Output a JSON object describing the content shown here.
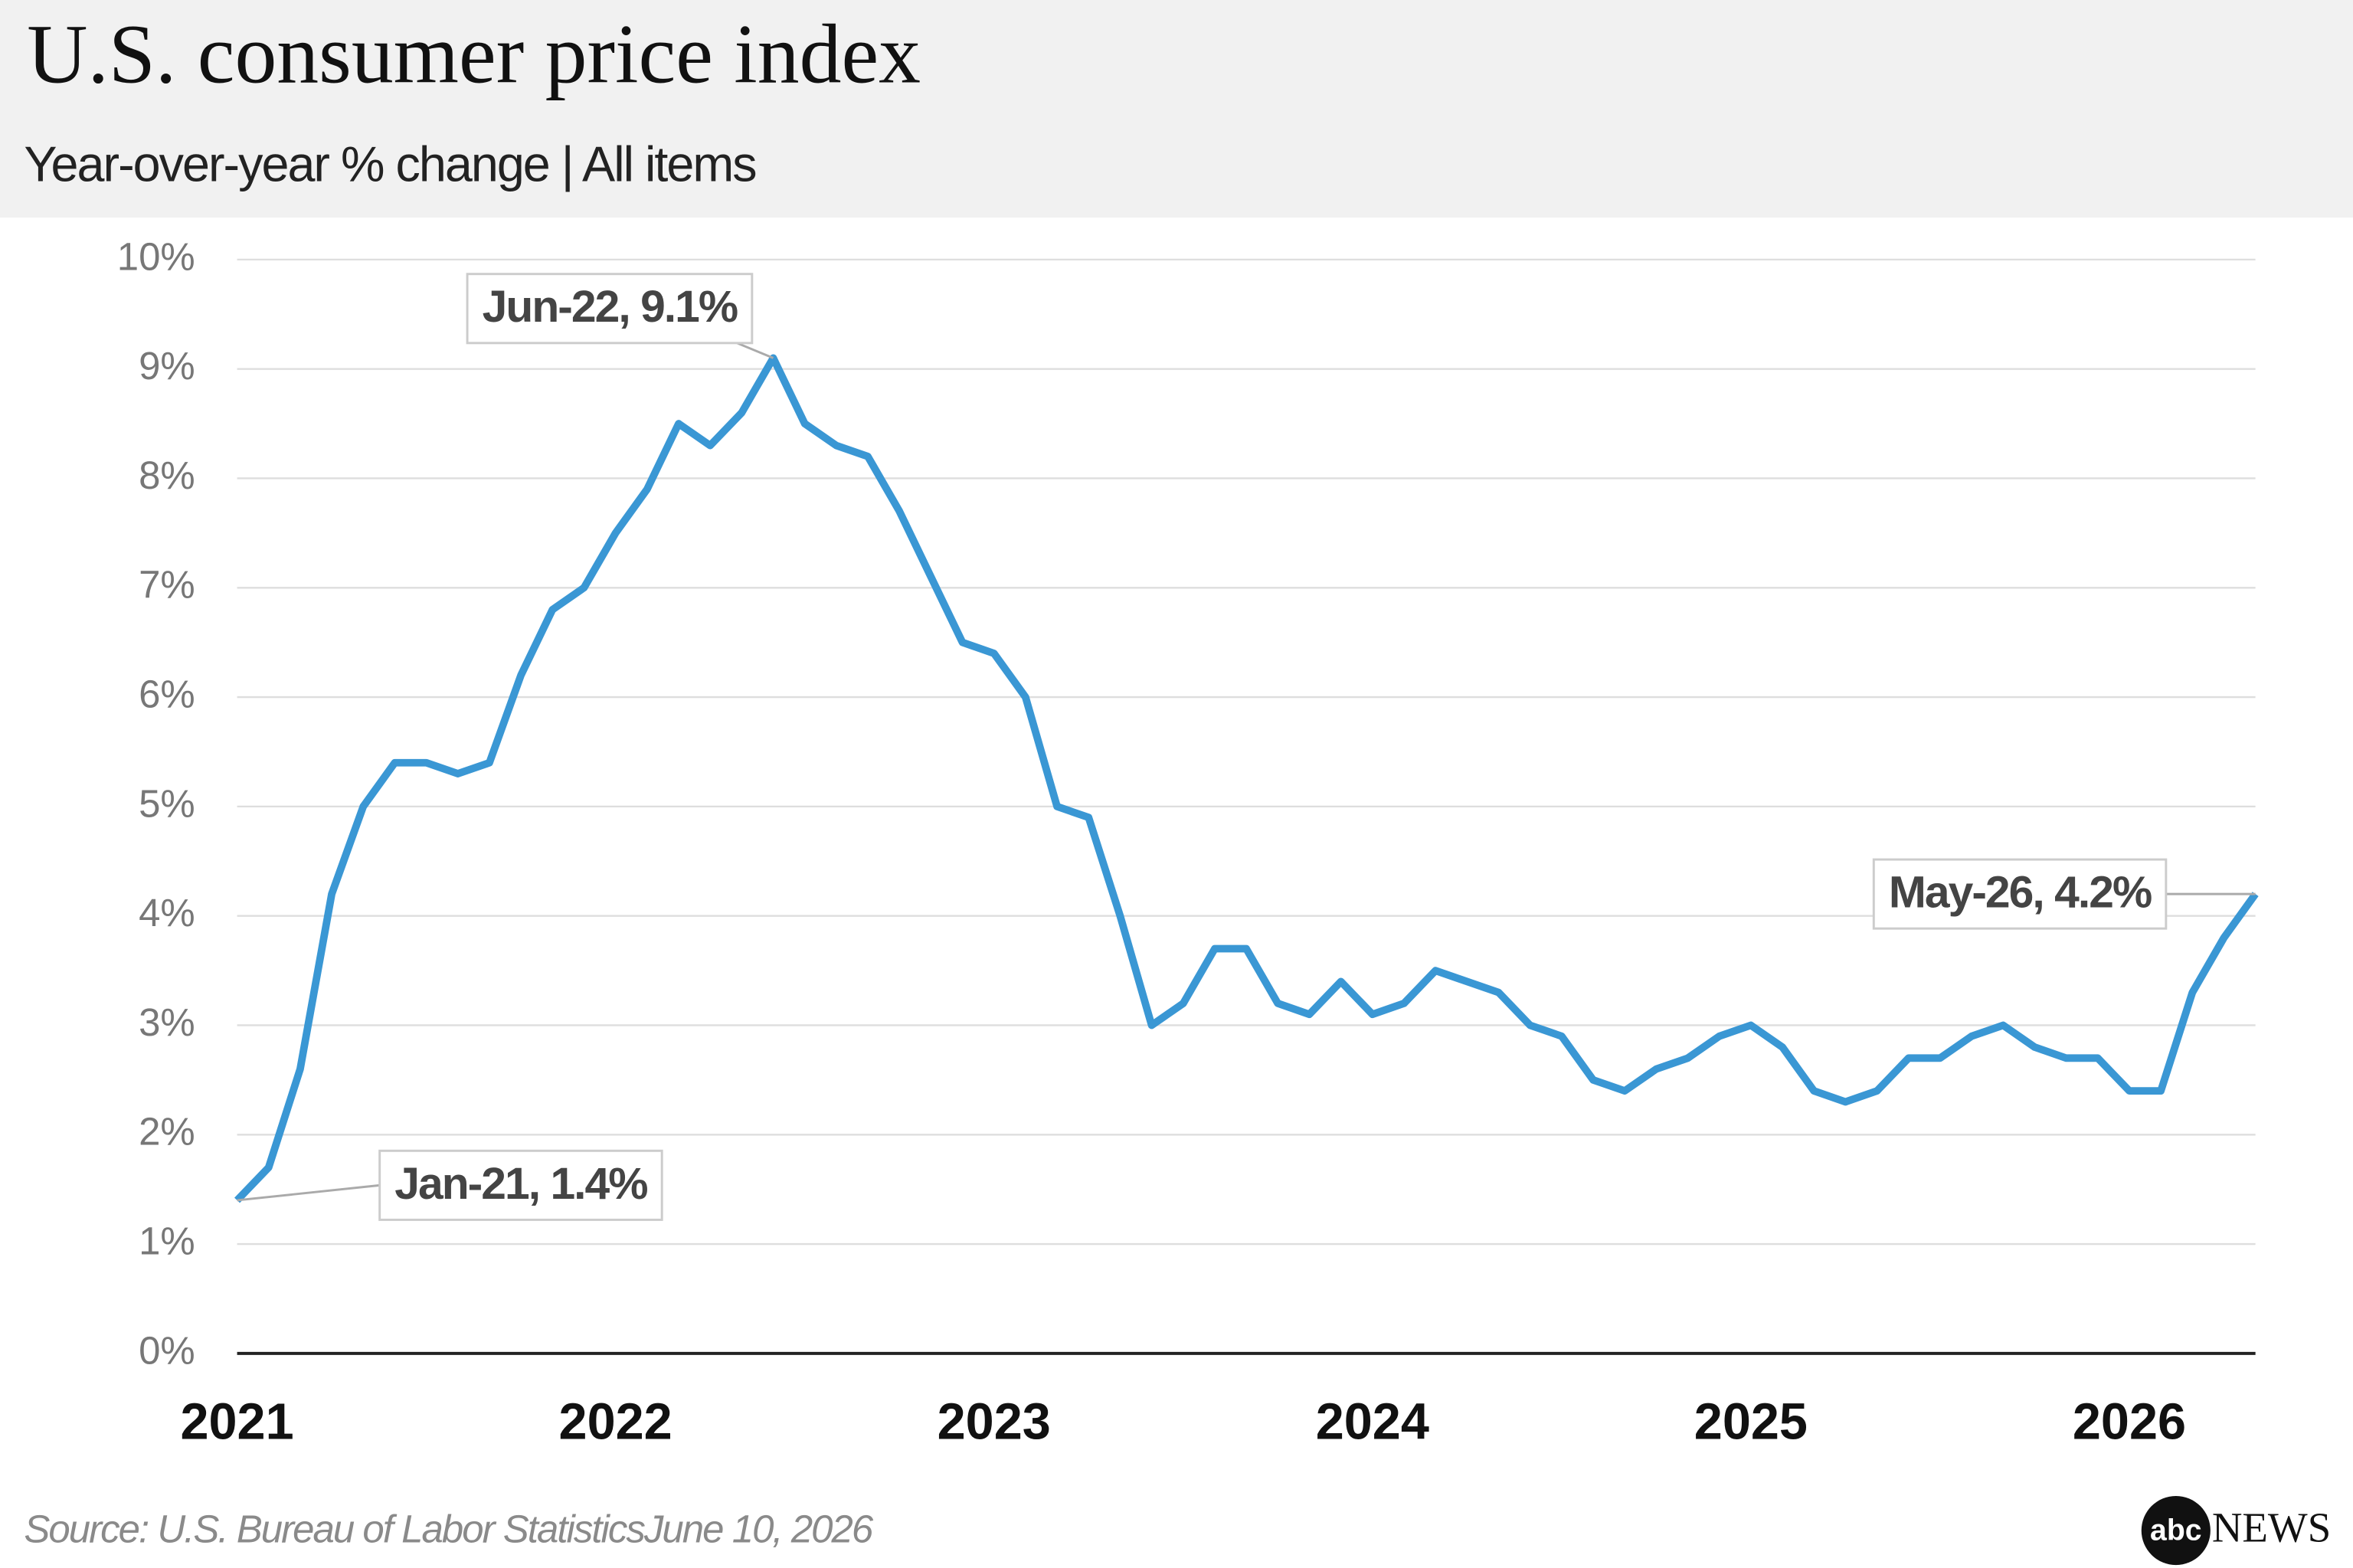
{
  "chart_data": {
    "type": "line",
    "title": "U.S. consumer price index",
    "subtitle": "Year-over-year % change | All items",
    "source": "Source: U.S. Bureau of Labor StatisticsJune 10, 2026",
    "logo": {
      "mark": "abc",
      "text": "NEWS"
    },
    "categories": [
      "2021",
      null,
      null,
      null,
      null,
      null,
      null,
      null,
      null,
      null,
      null,
      null,
      "2022",
      null,
      null,
      null,
      null,
      null,
      null,
      null,
      null,
      null,
      null,
      null,
      "2023",
      null,
      null,
      null,
      null,
      null,
      null,
      null,
      null,
      null,
      null,
      null,
      "2024",
      null,
      null,
      null,
      null,
      null,
      null,
      null,
      null,
      null,
      null,
      null,
      "2025",
      null,
      null,
      null,
      null,
      null,
      null,
      null,
      null,
      null,
      null,
      null,
      "2026",
      null,
      null,
      null,
      null
    ],
    "series": [
      {
        "name": "All items",
        "color": "#3a97d4",
        "values": [
          1.4,
          1.7,
          2.6,
          4.2,
          5.0,
          5.4,
          5.4,
          5.3,
          5.4,
          6.2,
          6.8,
          7.0,
          7.5,
          7.9,
          8.5,
          8.3,
          8.6,
          9.1,
          8.5,
          8.3,
          8.2,
          7.7,
          7.1,
          6.5,
          6.4,
          6.0,
          5.0,
          4.9,
          4.0,
          3.0,
          3.2,
          3.7,
          3.7,
          3.2,
          3.1,
          3.4,
          3.1,
          3.2,
          3.5,
          3.4,
          3.3,
          3.0,
          2.9,
          2.5,
          2.4,
          2.6,
          2.7,
          2.9,
          3.0,
          2.8,
          2.4,
          2.3,
          2.4,
          2.7,
          2.7,
          2.9,
          3.0,
          2.8,
          2.7,
          2.7,
          2.4,
          2.4,
          3.3,
          3.8,
          4.2
        ]
      }
    ],
    "annotations": [
      "Jan-21, 1.4%",
      "Jun-22, 9.1%",
      "May-26, 4.2%"
    ],
    "ylim": [
      0,
      10
    ],
    "yticks": [
      {
        "value": 0,
        "label": "0%"
      },
      {
        "value": 1,
        "label": "1%"
      },
      {
        "value": 2,
        "label": "2%"
      },
      {
        "value": 3,
        "label": "3%"
      },
      {
        "value": 4,
        "label": "4%"
      },
      {
        "value": 5,
        "label": "5%"
      },
      {
        "value": 6,
        "label": "6%"
      },
      {
        "value": 7,
        "label": "7%"
      },
      {
        "value": 8,
        "label": "8%"
      },
      {
        "value": 9,
        "label": "9%"
      },
      {
        "value": 10,
        "label": "10%"
      }
    ],
    "grid": true
  }
}
